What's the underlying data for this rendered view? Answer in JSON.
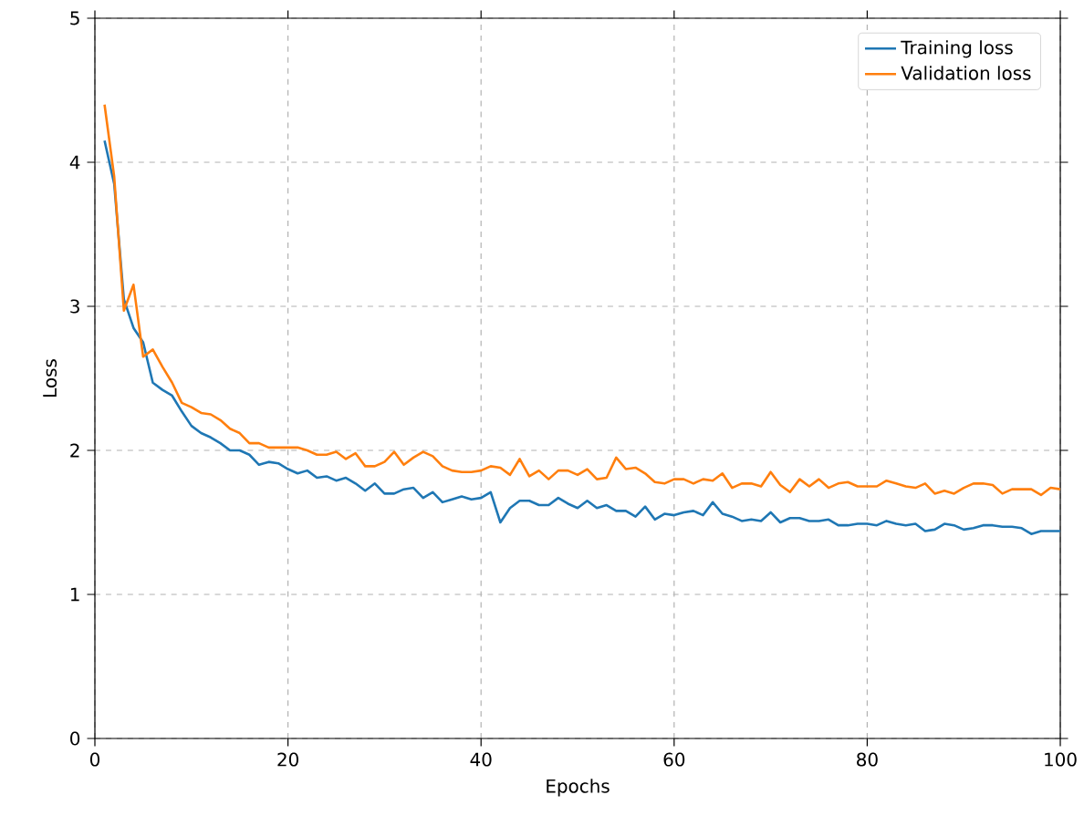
{
  "chart_data": {
    "type": "line",
    "xlabel": "Epochs",
    "ylabel": "Loss",
    "x": [
      1,
      2,
      3,
      4,
      5,
      6,
      7,
      8,
      9,
      10,
      11,
      12,
      13,
      14,
      15,
      16,
      17,
      18,
      19,
      20,
      21,
      22,
      23,
      24,
      25,
      26,
      27,
      28,
      29,
      30,
      31,
      32,
      33,
      34,
      35,
      36,
      37,
      38,
      39,
      40,
      41,
      42,
      43,
      44,
      45,
      46,
      47,
      48,
      49,
      50,
      51,
      52,
      53,
      54,
      55,
      56,
      57,
      58,
      59,
      60,
      61,
      62,
      63,
      64,
      65,
      66,
      67,
      68,
      69,
      70,
      71,
      72,
      73,
      74,
      75,
      76,
      77,
      78,
      79,
      80,
      81,
      82,
      83,
      84,
      85,
      86,
      87,
      88,
      89,
      90,
      91,
      92,
      93,
      94,
      95,
      96,
      97,
      98,
      99,
      100
    ],
    "series": [
      {
        "name": "Training loss",
        "color": "#1f77b4",
        "values": [
          4.15,
          3.85,
          3.05,
          2.85,
          2.75,
          2.47,
          2.42,
          2.38,
          2.27,
          2.17,
          2.12,
          2.09,
          2.05,
          2.0,
          2.0,
          1.97,
          1.9,
          1.92,
          1.91,
          1.87,
          1.84,
          1.86,
          1.81,
          1.82,
          1.79,
          1.81,
          1.77,
          1.72,
          1.77,
          1.7,
          1.7,
          1.73,
          1.74,
          1.67,
          1.71,
          1.64,
          1.66,
          1.68,
          1.66,
          1.67,
          1.71,
          1.5,
          1.6,
          1.65,
          1.65,
          1.62,
          1.62,
          1.67,
          1.63,
          1.6,
          1.65,
          1.6,
          1.62,
          1.58,
          1.58,
          1.54,
          1.61,
          1.52,
          1.56,
          1.55,
          1.57,
          1.58,
          1.55,
          1.64,
          1.56,
          1.54,
          1.51,
          1.52,
          1.51,
          1.57,
          1.5,
          1.53,
          1.53,
          1.51,
          1.51,
          1.52,
          1.48,
          1.48,
          1.49,
          1.49,
          1.48,
          1.51,
          1.49,
          1.48,
          1.49,
          1.44,
          1.45,
          1.49,
          1.48,
          1.45,
          1.46,
          1.48,
          1.48,
          1.47,
          1.47,
          1.46,
          1.42,
          1.44,
          1.44,
          1.44
        ]
      },
      {
        "name": "Validation loss",
        "color": "#ff7f0e",
        "values": [
          4.4,
          3.9,
          2.97,
          3.15,
          2.65,
          2.7,
          2.58,
          2.47,
          2.33,
          2.3,
          2.26,
          2.25,
          2.21,
          2.15,
          2.12,
          2.05,
          2.05,
          2.02,
          2.02,
          2.02,
          2.02,
          2.0,
          1.97,
          1.97,
          1.99,
          1.94,
          1.98,
          1.89,
          1.89,
          1.92,
          1.99,
          1.9,
          1.95,
          1.99,
          1.96,
          1.89,
          1.86,
          1.85,
          1.85,
          1.86,
          1.89,
          1.88,
          1.83,
          1.94,
          1.82,
          1.86,
          1.8,
          1.86,
          1.86,
          1.83,
          1.87,
          1.8,
          1.81,
          1.95,
          1.87,
          1.88,
          1.84,
          1.78,
          1.77,
          1.8,
          1.8,
          1.77,
          1.8,
          1.79,
          1.84,
          1.74,
          1.77,
          1.77,
          1.75,
          1.85,
          1.76,
          1.71,
          1.8,
          1.75,
          1.8,
          1.74,
          1.77,
          1.78,
          1.75,
          1.75,
          1.75,
          1.79,
          1.77,
          1.75,
          1.74,
          1.77,
          1.7,
          1.72,
          1.7,
          1.74,
          1.77,
          1.77,
          1.76,
          1.7,
          1.73,
          1.73,
          1.73,
          1.69,
          1.74,
          1.73
        ]
      }
    ],
    "xlim": [
      0,
      100
    ],
    "ylim": [
      0,
      5
    ],
    "xticks": [
      0,
      20,
      40,
      60,
      80,
      100
    ],
    "yticks": [
      0,
      1,
      2,
      3,
      4,
      5
    ],
    "grid": true,
    "legend": "top right",
    "line_style": "solid",
    "marker": "none"
  }
}
